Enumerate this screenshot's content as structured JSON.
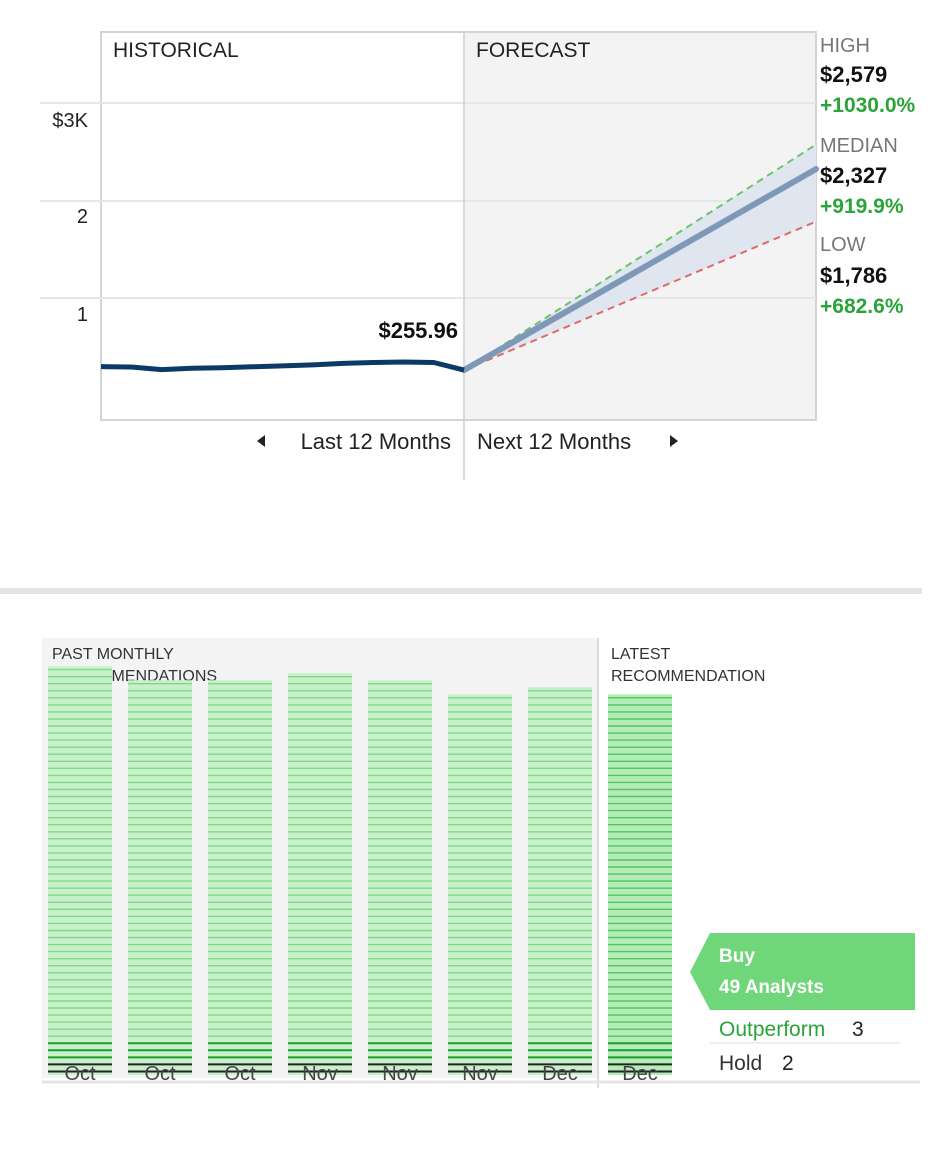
{
  "forecast": {
    "section_historical": "HISTORICAL",
    "section_forecast": "FORECAST",
    "y_ticks": [
      "$3K",
      "2",
      "1"
    ],
    "current_price": "$255.96",
    "nav_prev": "Last 12 Months",
    "nav_next": "Next 12 Months",
    "high": {
      "label": "HIGH",
      "price": "$2,579",
      "change": "+1030.0%"
    },
    "median": {
      "label": "MEDIAN",
      "price": "$2,327",
      "change": "+919.9%"
    },
    "low": {
      "label": "LOW",
      "price": "$1,786",
      "change": "+682.6%"
    },
    "colors": {
      "history_line": "#0b3a66",
      "median_line": "#7f98b8",
      "high_line": "#6cc46c",
      "low_line": "#e06a6a",
      "band": "#dfe6ef"
    }
  },
  "recommendations": {
    "past_title_1": "PAST MONTHLY",
    "past_title_2": "RECOMMENDATIONS",
    "latest_title_1": "LATEST",
    "latest_title_2": "RECOMMENDATION",
    "months": [
      "Oct",
      "Oct",
      "Oct",
      "Nov",
      "Nov",
      "Nov",
      "Dec",
      "Dec"
    ],
    "rating": "Buy",
    "analysts": "49 Analysts",
    "outperform_label": "Outperform",
    "outperform_count": "3",
    "hold_label": "Hold",
    "hold_count": "2",
    "colors": {
      "buy": "#6fd67a",
      "outperform": "#2aa43a"
    }
  },
  "chart_data": [
    {
      "type": "line",
      "title": "",
      "xlabel": "",
      "ylabel": "",
      "ylim": [
        0,
        3300
      ],
      "y_ticks": [
        1000,
        2000,
        3000
      ],
      "series": [
        {
          "name": "",
          "x": [
            0,
            1,
            2,
            3,
            4,
            5,
            6,
            7,
            8,
            9,
            10,
            11,
            12
          ],
          "values": [
            292,
            288,
            262,
            275,
            280,
            290,
            300,
            310,
            325,
            335,
            340,
            335,
            256
          ]
        },
        {
          "name": "HIGH",
          "x": [
            12,
            24
          ],
          "values": [
            256,
            2579
          ]
        },
        {
          "name": "MEDIAN",
          "x": [
            12,
            24
          ],
          "values": [
            256,
            2327
          ]
        },
        {
          "name": "LOW",
          "x": [
            12,
            24
          ],
          "values": [
            256,
            1786
          ]
        }
      ]
    },
    {
      "type": "bar",
      "title": "",
      "categories": [
        "Oct",
        "Oct",
        "Oct",
        "Nov",
        "Nov",
        "Nov",
        "Dec",
        "Dec"
      ],
      "series": [
        {
          "name": "Buy",
          "values": [
            53,
            51,
            51,
            52,
            51,
            49,
            50,
            49
          ]
        },
        {
          "name": "Outperform",
          "values": [
            3,
            3,
            3,
            3,
            3,
            3,
            3,
            3
          ]
        },
        {
          "name": "Hold",
          "values": [
            2,
            2,
            2,
            2,
            2,
            2,
            2,
            2
          ]
        }
      ]
    }
  ]
}
